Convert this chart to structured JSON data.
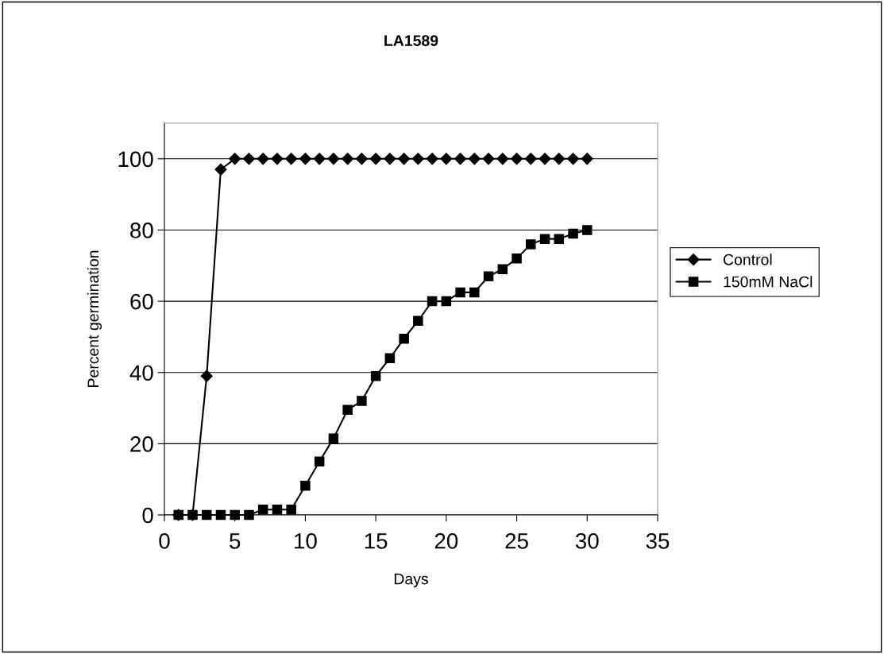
{
  "chart_data": {
    "type": "line",
    "title": "LA1589",
    "xlabel": "Days",
    "ylabel": "Percent germination",
    "xlim": [
      0,
      35
    ],
    "xticks": [
      0,
      5,
      10,
      15,
      20,
      25,
      30,
      35
    ],
    "ylim": [
      0,
      110
    ],
    "yticks": [
      0,
      20,
      40,
      60,
      80,
      100
    ],
    "grid": "y",
    "legend": "right",
    "line_style": "solid",
    "x": [
      1,
      2,
      3,
      4,
      5,
      6,
      7,
      8,
      9,
      10,
      11,
      12,
      13,
      14,
      15,
      16,
      17,
      18,
      19,
      20,
      21,
      22,
      23,
      24,
      25,
      26,
      27,
      28,
      29,
      30
    ],
    "series": [
      {
        "name": "Control",
        "color": "#000000",
        "marker": "diamond",
        "values": [
          0,
          0,
          39,
          97,
          100,
          100,
          100,
          100,
          100,
          100,
          100,
          100,
          100,
          100,
          100,
          100,
          100,
          100,
          100,
          100,
          100,
          100,
          100,
          100,
          100,
          100,
          100,
          100,
          100,
          100
        ]
      },
      {
        "name": "150mM NaCl",
        "color": "#000000",
        "marker": "square",
        "values": [
          0,
          0,
          0,
          0,
          0,
          0,
          1.5,
          1.5,
          1.5,
          8.2,
          15,
          21.5,
          29.5,
          32,
          39,
          44,
          49.5,
          54.5,
          60,
          60,
          62.5,
          62.5,
          67,
          69,
          72,
          76,
          77.5,
          77.5,
          79,
          80
        ]
      }
    ]
  }
}
